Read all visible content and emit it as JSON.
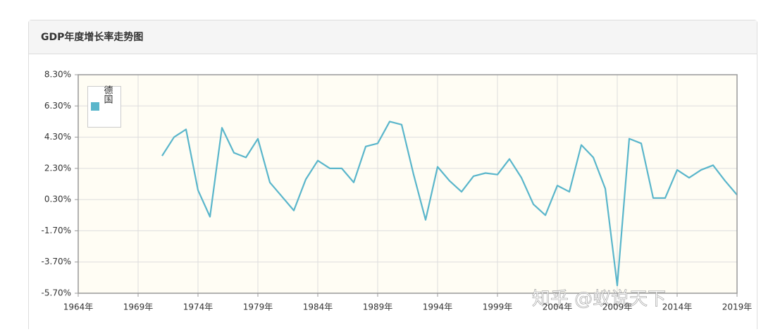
{
  "panel_title": "GDP年度增长率走势图",
  "watermark": "知乎 @蚁说天下",
  "chart_data": {
    "type": "line",
    "x": [
      1971,
      1972,
      1973,
      1974,
      1975,
      1976,
      1977,
      1978,
      1979,
      1980,
      1981,
      1982,
      1983,
      1984,
      1985,
      1986,
      1987,
      1988,
      1989,
      1990,
      1991,
      1992,
      1993,
      1994,
      1995,
      1996,
      1997,
      1998,
      1999,
      2000,
      2001,
      2002,
      2003,
      2004,
      2005,
      2006,
      2007,
      2008,
      2009,
      2010,
      2011,
      2012,
      2013,
      2014,
      2015,
      2016,
      2017,
      2018,
      2019
    ],
    "series": [
      {
        "name": "德国",
        "color": "#5ab6cb",
        "values": [
          3.1,
          4.3,
          4.8,
          0.9,
          -0.8,
          4.9,
          3.3,
          3.0,
          4.2,
          1.4,
          0.5,
          -0.4,
          1.6,
          2.8,
          2.3,
          2.3,
          1.4,
          3.7,
          3.9,
          5.3,
          5.1,
          1.9,
          -1.0,
          2.4,
          1.5,
          0.8,
          1.8,
          2.0,
          1.9,
          2.9,
          1.7,
          0.0,
          -0.7,
          1.2,
          0.8,
          3.8,
          3.0,
          1.0,
          -5.2,
          4.2,
          3.9,
          0.4,
          0.4,
          2.2,
          1.7,
          2.2,
          2.5,
          1.5,
          0.6
        ]
      }
    ],
    "xlim": [
      1964,
      2019
    ],
    "xticks": [
      {
        "value": 1964,
        "label": "1964年"
      },
      {
        "value": 1969,
        "label": "1969年"
      },
      {
        "value": 1974,
        "label": "1974年"
      },
      {
        "value": 1979,
        "label": "1979年"
      },
      {
        "value": 1984,
        "label": "1984年"
      },
      {
        "value": 1989,
        "label": "1989年"
      },
      {
        "value": 1994,
        "label": "1994年"
      },
      {
        "value": 1999,
        "label": "1999年"
      },
      {
        "value": 2004,
        "label": "2004年"
      },
      {
        "value": 2009,
        "label": "2009年"
      },
      {
        "value": 2014,
        "label": "2014年"
      },
      {
        "value": 2019,
        "label": "2019年"
      }
    ],
    "ylim": [
      -5.7,
      8.3
    ],
    "yticks": [
      {
        "value": -5.7,
        "label": "-5.70%"
      },
      {
        "value": -3.7,
        "label": "-3.70%"
      },
      {
        "value": -1.7,
        "label": "-1.70%"
      },
      {
        "value": 0.3,
        "label": "0.30%"
      },
      {
        "value": 2.3,
        "label": "2.30%"
      },
      {
        "value": 4.3,
        "label": "4.30%"
      },
      {
        "value": 6.3,
        "label": "6.30%"
      },
      {
        "value": 8.3,
        "label": "8.30%"
      }
    ],
    "grid": true,
    "legend": "top-left"
  }
}
